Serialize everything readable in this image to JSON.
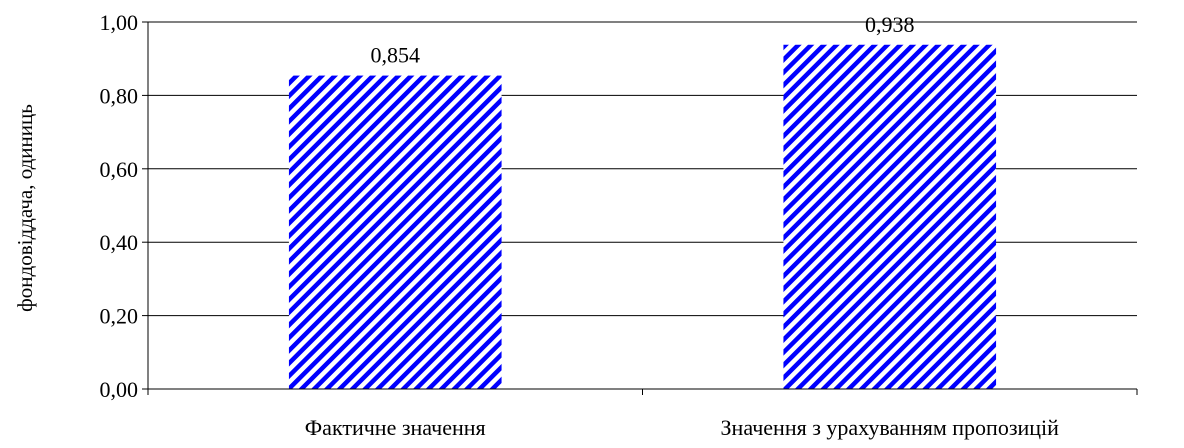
{
  "chart_data": {
    "type": "bar",
    "categories": [
      "Фактичне значення",
      "Значення з урахуванням пропозицій"
    ],
    "values": [
      0.854,
      0.938
    ],
    "data_labels": [
      "0,854",
      "0,938"
    ],
    "ylabel": "фондовіддача, одиниць",
    "ylim": [
      0,
      1
    ],
    "yticks": [
      0,
      0.2,
      0.4,
      0.6,
      0.8,
      1.0
    ],
    "ytick_labels": [
      "0,00",
      "0,20",
      "0,40",
      "0,60",
      "0,80",
      "1,00"
    ],
    "grid": true,
    "legend": "none",
    "bar_fill": {
      "pattern": "diagonal-stripes",
      "stripe_color": "#0000ff",
      "accent_color": "#000080",
      "background_color": "#ffffff"
    }
  }
}
